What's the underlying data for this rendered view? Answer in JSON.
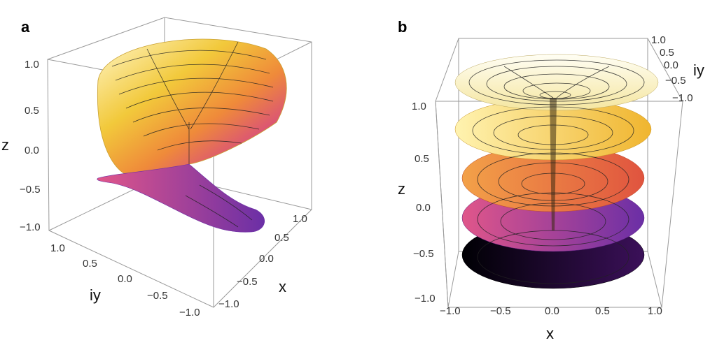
{
  "panels": [
    {
      "label": "a",
      "axes": {
        "z": {
          "label": "z",
          "ticks": [
            "1.0",
            "0.5",
            "0.0",
            "−0.5",
            "−1.0"
          ]
        },
        "iy": {
          "label": "iy",
          "ticks": [
            "1.0",
            "0.5",
            "0.0",
            "−0.5",
            "−1.0"
          ]
        },
        "x": {
          "label": "x",
          "ticks": [
            "1.0",
            "0.5",
            "0.0",
            "−0.5",
            "−1.0"
          ]
        }
      }
    },
    {
      "label": "b",
      "axes": {
        "z": {
          "label": "z",
          "ticks": [
            "1.0",
            "0.5",
            "0.0",
            "−0.5",
            "−1.0"
          ]
        },
        "iy": {
          "label": "iy",
          "ticks": [
            "1.0",
            "0.5",
            "0.0",
            "−0.5",
            "−1.0"
          ]
        },
        "x": {
          "label": "x",
          "ticks": [
            "−1.0",
            "−0.5",
            "0.0",
            "0.5",
            "1.0"
          ]
        }
      }
    }
  ],
  "colors": {
    "surface_top": "#fffbe0",
    "surface_yellow": "#f2c93b",
    "surface_orange": "#ef8a3a",
    "surface_pink": "#d94f7a",
    "surface_purple": "#6b2fa6",
    "surface_dark": "#120a1e"
  }
}
